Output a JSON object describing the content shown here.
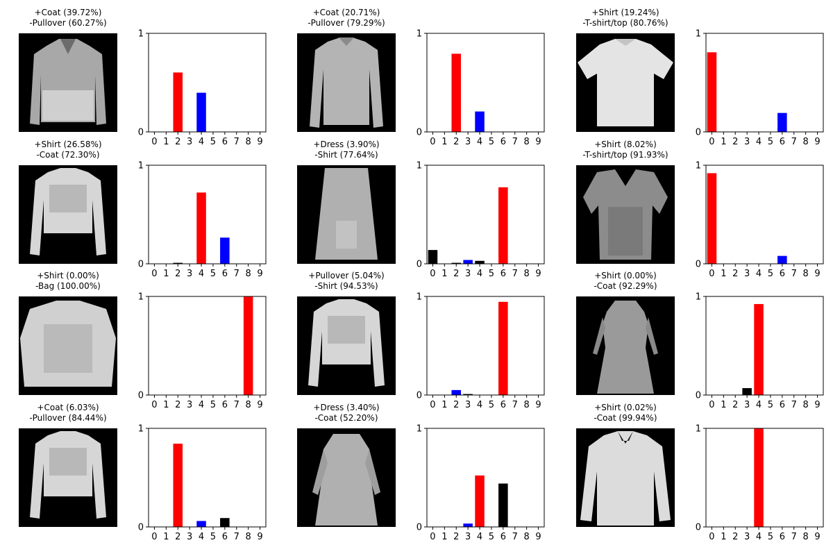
{
  "chart_data": [
    {
      "type": "bar",
      "caption_line1": "+Coat (39.72%)",
      "caption_line2": "-Pullover (60.27%)",
      "categories": [
        "0",
        "1",
        "2",
        "3",
        "4",
        "5",
        "6",
        "7",
        "8",
        "9"
      ],
      "values": [
        0,
        0,
        0.6027,
        0,
        0.3972,
        0,
        0,
        0,
        0,
        0
      ],
      "predicted_index": 2,
      "true_index": 4,
      "ylim": [
        0,
        1
      ],
      "yticks": [
        "0",
        "1"
      ],
      "garment": "pullover-hooded"
    },
    {
      "type": "bar",
      "caption_line1": "+Coat (20.71%)",
      "caption_line2": "-Pullover (79.29%)",
      "categories": [
        "0",
        "1",
        "2",
        "3",
        "4",
        "5",
        "6",
        "7",
        "8",
        "9"
      ],
      "values": [
        0,
        0,
        0.7929,
        0,
        0.2071,
        0,
        0,
        0,
        0,
        0
      ],
      "predicted_index": 2,
      "true_index": 4,
      "ylim": [
        0,
        1
      ],
      "yticks": [
        "0",
        "1"
      ],
      "garment": "longsleeve"
    },
    {
      "type": "bar",
      "caption_line1": "+Shirt (19.24%)",
      "caption_line2": "-T-shirt/top (80.76%)",
      "categories": [
        "0",
        "1",
        "2",
        "3",
        "4",
        "5",
        "6",
        "7",
        "8",
        "9"
      ],
      "values": [
        0.8076,
        0,
        0,
        0,
        0,
        0,
        0.1924,
        0,
        0,
        0
      ],
      "predicted_index": 0,
      "true_index": 6,
      "ylim": [
        0,
        1
      ],
      "yticks": [
        "0",
        "1"
      ],
      "garment": "tshirt"
    },
    {
      "type": "bar",
      "caption_line1": "+Shirt (26.58%)",
      "caption_line2": "-Coat (72.30%)",
      "categories": [
        "0",
        "1",
        "2",
        "3",
        "4",
        "5",
        "6",
        "7",
        "8",
        "9"
      ],
      "values": [
        0,
        0,
        0.01,
        0,
        0.723,
        0,
        0.2658,
        0,
        0,
        0
      ],
      "predicted_index": 4,
      "true_index": 6,
      "ylim": [
        0,
        1
      ],
      "yticks": [
        "0",
        "1"
      ],
      "garment": "cropped-longsleeve"
    },
    {
      "type": "bar",
      "caption_line1": "+Dress (3.90%)",
      "caption_line2": "-Shirt (77.64%)",
      "categories": [
        "0",
        "1",
        "2",
        "3",
        "4",
        "5",
        "6",
        "7",
        "8",
        "9"
      ],
      "values": [
        0.14,
        0,
        0.01,
        0.039,
        0.03,
        0,
        0.7764,
        0,
        0,
        0
      ],
      "predicted_index": 6,
      "true_index": 3,
      "ylim": [
        0,
        1
      ],
      "yticks": [
        "0",
        "1"
      ],
      "garment": "dress"
    },
    {
      "type": "bar",
      "caption_line1": "+Shirt (8.02%)",
      "caption_line2": "-T-shirt/top (91.93%)",
      "categories": [
        "0",
        "1",
        "2",
        "3",
        "4",
        "5",
        "6",
        "7",
        "8",
        "9"
      ],
      "values": [
        0.9193,
        0,
        0,
        0,
        0,
        0,
        0.0802,
        0,
        0,
        0
      ],
      "predicted_index": 0,
      "true_index": 6,
      "ylim": [
        0,
        1
      ],
      "yticks": [
        "0",
        "1"
      ],
      "garment": "blouse"
    },
    {
      "type": "bar",
      "caption_line1": "+Shirt (0.00%)",
      "caption_line2": "-Bag (100.00%)",
      "categories": [
        "0",
        "1",
        "2",
        "3",
        "4",
        "5",
        "6",
        "7",
        "8",
        "9"
      ],
      "values": [
        0,
        0,
        0,
        0,
        0,
        0,
        0,
        0,
        1.0,
        0
      ],
      "predicted_index": 8,
      "true_index": 6,
      "ylim": [
        0,
        1
      ],
      "yticks": [
        "0",
        "1"
      ],
      "garment": "boxy"
    },
    {
      "type": "bar",
      "caption_line1": "+Pullover (5.04%)",
      "caption_line2": "-Shirt (94.53%)",
      "categories": [
        "0",
        "1",
        "2",
        "3",
        "4",
        "5",
        "6",
        "7",
        "8",
        "9"
      ],
      "values": [
        0,
        0,
        0.0504,
        0.01,
        0,
        0,
        0.9453,
        0,
        0,
        0
      ],
      "predicted_index": 6,
      "true_index": 2,
      "ylim": [
        0,
        1
      ],
      "yticks": [
        "0",
        "1"
      ],
      "garment": "cropped-longsleeve"
    },
    {
      "type": "bar",
      "caption_line1": "+Shirt (0.00%)",
      "caption_line2": "-Coat (92.29%)",
      "categories": [
        "0",
        "1",
        "2",
        "3",
        "4",
        "5",
        "6",
        "7",
        "8",
        "9"
      ],
      "values": [
        0,
        0,
        0,
        0.07,
        0.9229,
        0,
        0,
        0,
        0,
        0
      ],
      "predicted_index": 4,
      "true_index": 6,
      "ylim": [
        0,
        1
      ],
      "yticks": [
        "0",
        "1"
      ],
      "garment": "long-dress"
    },
    {
      "type": "bar",
      "caption_line1": "+Coat (6.03%)",
      "caption_line2": "-Pullover (84.44%)",
      "categories": [
        "0",
        "1",
        "2",
        "3",
        "4",
        "5",
        "6",
        "7",
        "8",
        "9"
      ],
      "values": [
        0,
        0,
        0.8444,
        0,
        0.0603,
        0,
        0.09,
        0,
        0,
        0
      ],
      "predicted_index": 2,
      "true_index": 4,
      "ylim": [
        0,
        1
      ],
      "yticks": [
        "0",
        "1"
      ],
      "garment": "cropped-longsleeve"
    },
    {
      "type": "bar",
      "caption_line1": "+Dress (3.40%)",
      "caption_line2": "-Coat (52.20%)",
      "categories": [
        "0",
        "1",
        "2",
        "3",
        "4",
        "5",
        "6",
        "7",
        "8",
        "9"
      ],
      "values": [
        0,
        0,
        0,
        0.034,
        0.522,
        0,
        0.44,
        0,
        0,
        0
      ],
      "predicted_index": 4,
      "true_index": 3,
      "ylim": [
        0,
        1
      ],
      "yticks": [
        "0",
        "1"
      ],
      "garment": "coat-dress"
    },
    {
      "type": "bar",
      "caption_line1": "+Shirt (0.02%)",
      "caption_line2": "-Coat (99.94%)",
      "categories": [
        "0",
        "1",
        "2",
        "3",
        "4",
        "5",
        "6",
        "7",
        "8",
        "9"
      ],
      "values": [
        0,
        0,
        0,
        0,
        0.9994,
        0,
        0.0002,
        0,
        0,
        0
      ],
      "predicted_index": 4,
      "true_index": 6,
      "ylim": [
        0,
        1
      ],
      "yticks": [
        "0",
        "1"
      ],
      "garment": "shirt"
    }
  ],
  "colors": {
    "predicted": "#ff0000",
    "true": "#0000ff",
    "other": "#000000",
    "image_background": "#000000"
  }
}
